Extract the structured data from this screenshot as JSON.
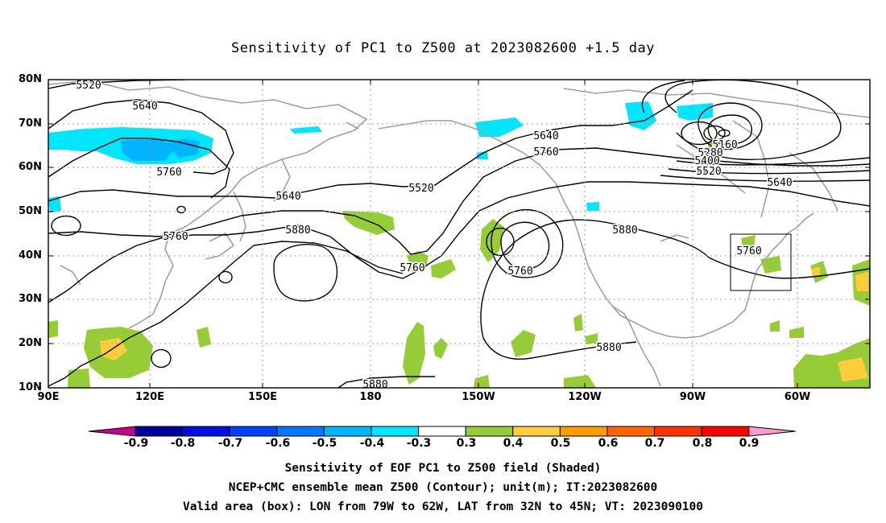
{
  "title": "Sensitivity of PC1 to Z500 at 2023082600 +1.5 day",
  "lat_labels": [
    "80N",
    "70N",
    "60N",
    "50N",
    "40N",
    "30N",
    "20N",
    "10N"
  ],
  "lon_labels": [
    "90E",
    "120E",
    "150E",
    "180",
    "150W",
    "120W",
    "90W",
    "60W"
  ],
  "contour_labels": [
    "5520",
    "5640",
    "5760",
    "5640",
    "5520",
    "5880",
    "5760",
    "5640",
    "5760",
    "5160",
    "5280",
    "5400",
    "5520",
    "5640",
    "5880",
    "5760",
    "5760",
    "5880",
    "5880"
  ],
  "colorbar": {
    "labels": [
      "-0.9",
      "-0.8",
      "-0.7",
      "-0.6",
      "-0.5",
      "-0.4",
      "-0.3",
      "0.3",
      "0.4",
      "0.5",
      "0.6",
      "0.7",
      "0.8",
      "0.9"
    ],
    "colors": [
      "#c8008c",
      "#0000a0",
      "#0010dc",
      "#0040ff",
      "#0078ff",
      "#00b4ff",
      "#00e6ff",
      "#ffffff",
      "#96cd37",
      "#ffcd3c",
      "#ff9b00",
      "#ff6400",
      "#ff3200",
      "#ff0000",
      "#ff9bcd"
    ]
  },
  "captions": [
    "Sensitivity of EOF PC1 to Z500 field (Shaded)",
    "NCEP+CMC ensemble mean Z500 (Contour); unit(m); IT:2023082600",
    "Valid area (box): LON from 79W to 62W, LAT from 32N to 45N; VT: 2023090100"
  ]
}
